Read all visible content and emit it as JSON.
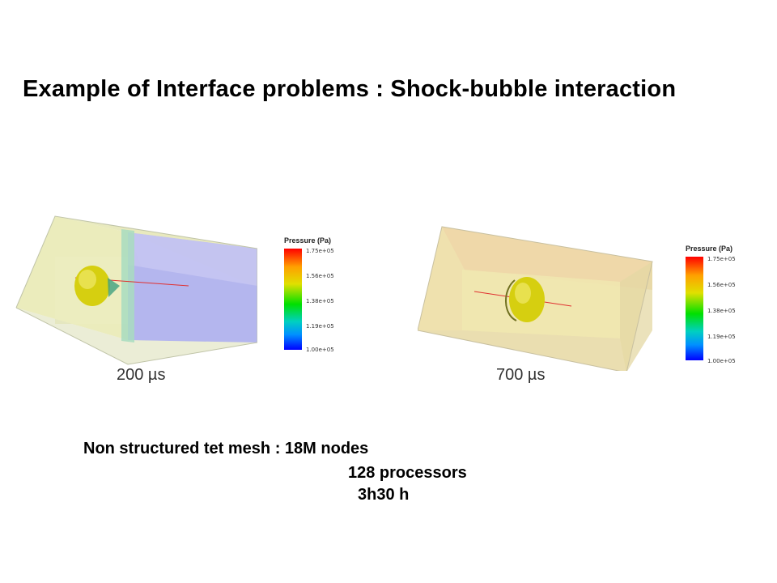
{
  "slide": {
    "title": "Example of Interface problems : Shock-bubble interaction"
  },
  "panels": [
    {
      "time_label": "200 µs",
      "legend": {
        "title": "Pressure (Pa)",
        "ticks": [
          "1.75e+05",
          "1.56e+05",
          "1.38e+05",
          "1.19e+05",
          "1.00e+05"
        ]
      }
    },
    {
      "time_label": "700 µs",
      "legend": {
        "title": "Pressure (Pa)",
        "ticks": [
          "1.75e+05",
          "1.56e+05",
          "1.38e+05",
          "1.19e+05",
          "1.00e+05"
        ]
      }
    }
  ],
  "info": {
    "mesh": "Non structured tet mesh : 18M nodes",
    "processors": "128 processors",
    "time": "3h30 h"
  },
  "colors": {
    "pre_shock": "#e6e8a8",
    "post_shock": "#b8b8f0",
    "bubble": "#d8d000"
  }
}
